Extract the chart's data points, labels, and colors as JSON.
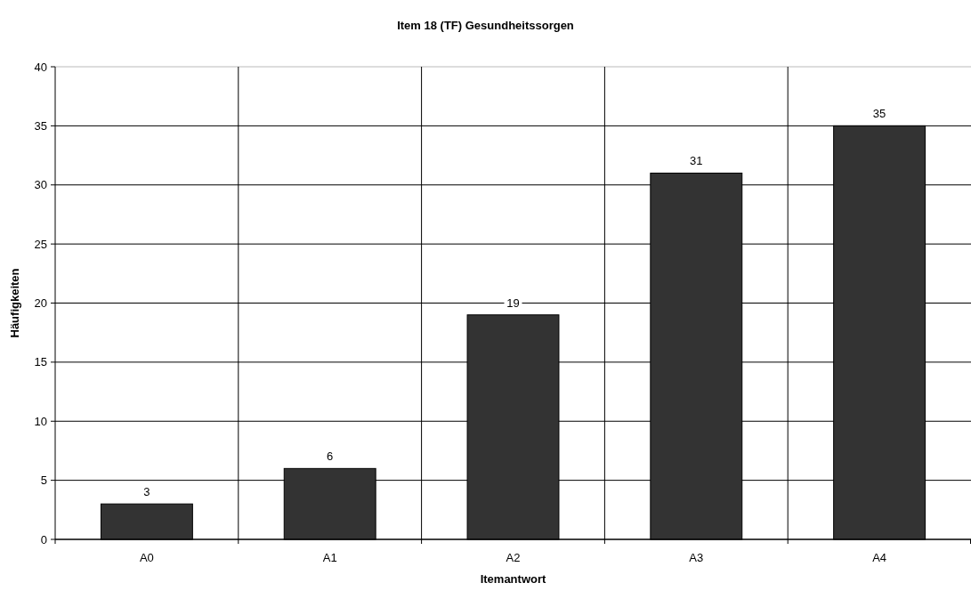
{
  "chart_data": {
    "type": "bar",
    "title": "Item 18 (TF) Gesundheitssorgen",
    "xlabel": "Itemantwort",
    "ylabel": "Häufigkeiten",
    "categories": [
      "A0",
      "A1",
      "A2",
      "A3",
      "A4"
    ],
    "values": [
      3,
      6,
      19,
      31,
      35
    ],
    "color": "#333333",
    "ylim": [
      0,
      40
    ],
    "yticks": [
      0,
      5,
      10,
      15,
      20,
      25,
      30,
      35,
      40
    ],
    "grid": true,
    "data_labels": true
  }
}
